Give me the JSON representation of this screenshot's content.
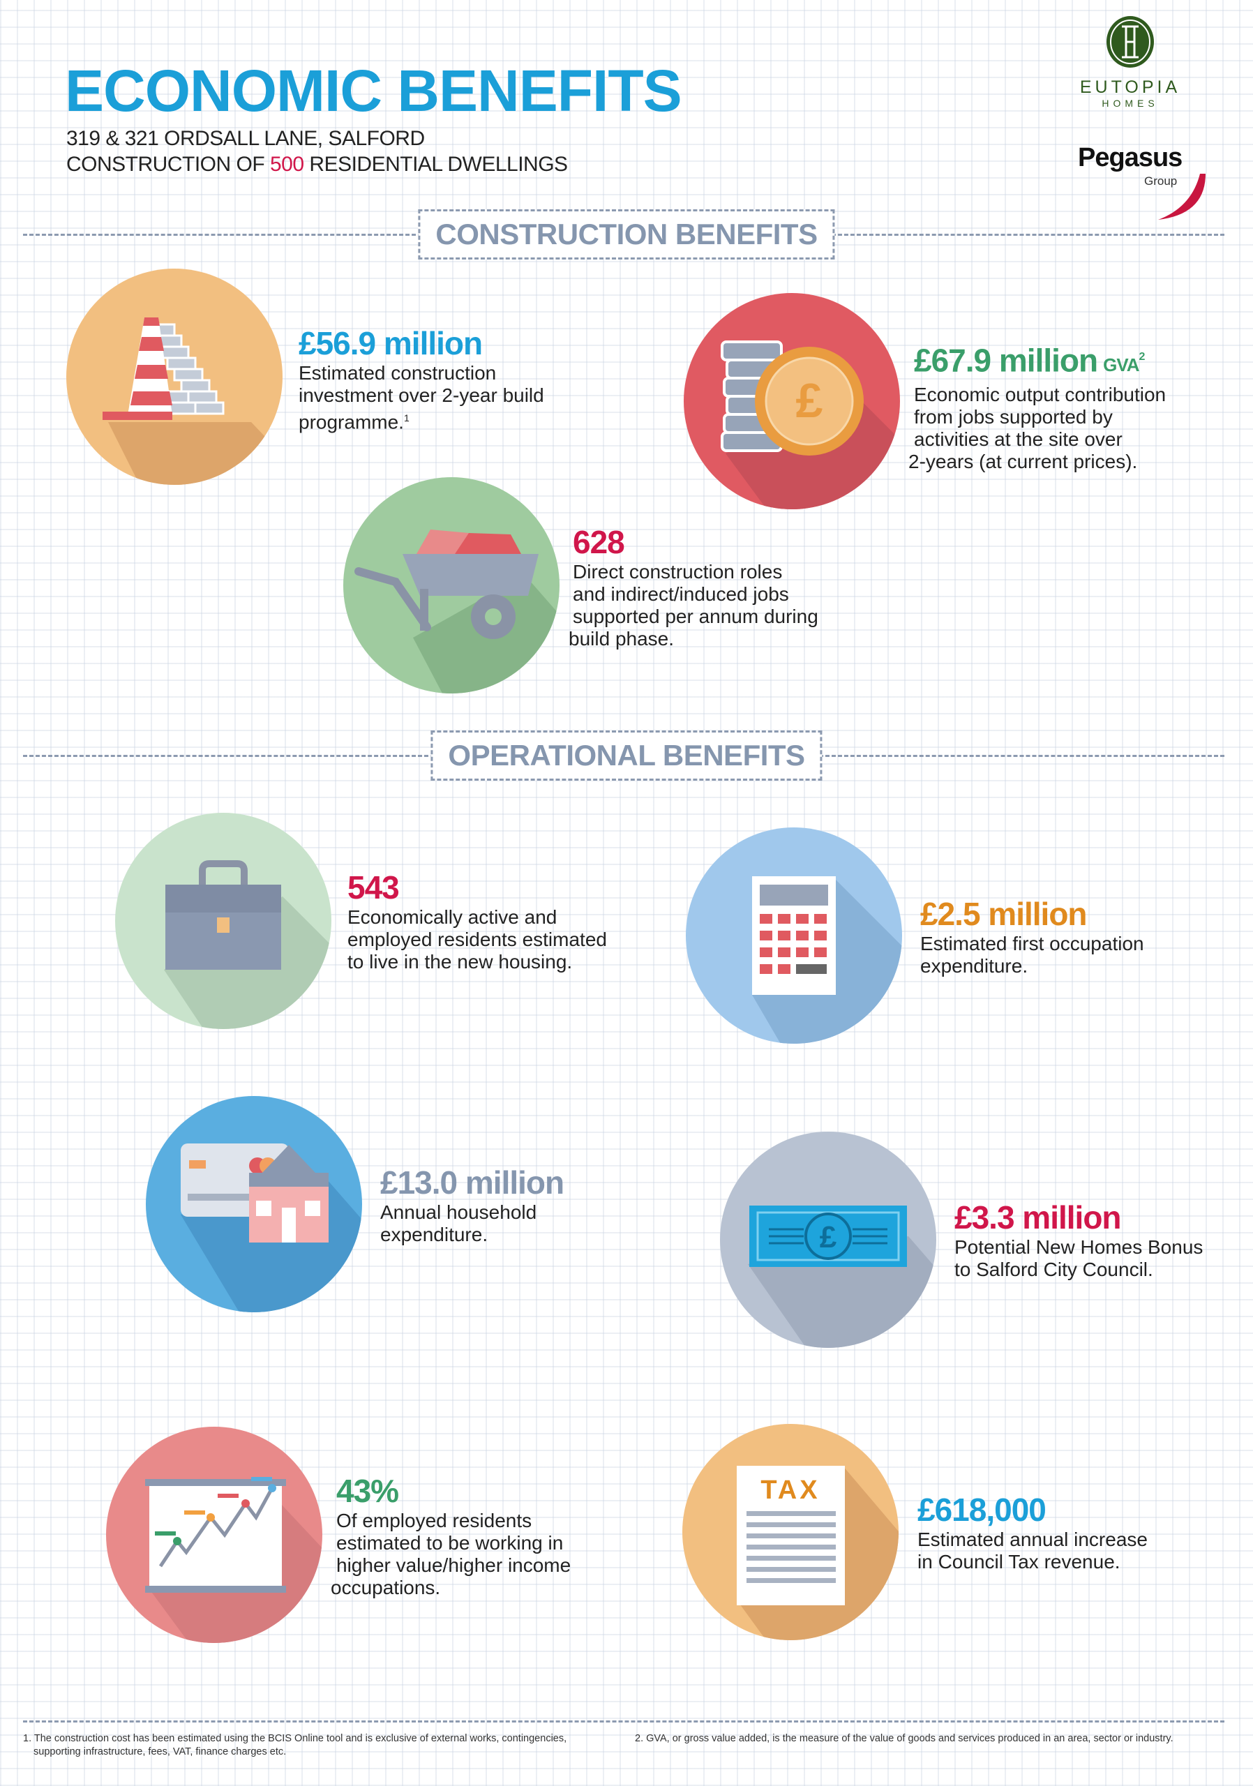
{
  "header": {
    "title": "ECONOMIC BENEFITS",
    "address": "319 & 321 ORDSALL LANE, SALFORD",
    "line2_pre": "CONSTRUCTION OF ",
    "line2_num": "500",
    "line2_post": " RESIDENTIAL DWELLINGS"
  },
  "logos": {
    "eutopia": "EUTOPIA",
    "eutopia_sub": "HOMES",
    "pegasus": "Pegasus",
    "pegasus_sub": "Group"
  },
  "sections": {
    "construction": "CONSTRUCTION BENEFITS",
    "operational": "OPERATIONAL BENEFITS"
  },
  "colors": {
    "blue": "#1b9fd8",
    "green": "#3a9e6a",
    "crimson": "#d0164a",
    "orange": "#e08a1e",
    "slate": "#8596ae"
  },
  "cards": [
    {
      "icon": "traffic-cone-bricks-icon",
      "value": "£56.9 million",
      "desc": [
        "Estimated construction",
        "investment over 2-year build",
        "programme."
      ],
      "footnote_ref": "1"
    },
    {
      "icon": "pound-coins-icon",
      "value": "£67.9 million",
      "suffix": "GVA",
      "suffix_ref": "2",
      "desc": [
        "Economic output contribution",
        "from jobs supported by",
        "activities at the site over",
        "2-years (at current prices)."
      ]
    },
    {
      "icon": "wheelbarrow-icon",
      "value": "628",
      "desc": [
        "Direct construction roles",
        "and indirect/induced jobs",
        "supported per annum during",
        "build phase."
      ]
    },
    {
      "icon": "briefcase-icon",
      "value": "543",
      "desc": [
        "Economically active and",
        "employed residents estimated",
        "to live in the new housing."
      ]
    },
    {
      "icon": "calculator-icon",
      "value": "£2.5 million",
      "desc": [
        "Estimated first occupation",
        "expenditure."
      ]
    },
    {
      "icon": "credit-card-house-icon",
      "value": "£13.0 million",
      "desc": [
        "Annual household",
        "expenditure."
      ]
    },
    {
      "icon": "banknote-icon",
      "value": "£3.3 million",
      "desc": [
        "Potential New Homes Bonus",
        "to Salford City Council."
      ]
    },
    {
      "icon": "growth-chart-icon",
      "value": "43%",
      "desc": [
        "Of employed residents",
        "estimated to be working in",
        "higher value/higher income",
        "occupations."
      ]
    },
    {
      "icon": "tax-document-icon",
      "value": "£618,000",
      "icon_text": "TAX",
      "desc": [
        "Estimated annual increase",
        "in Council Tax revenue."
      ]
    }
  ],
  "footnotes": [
    "1. The construction cost has been estimated using the BCIS Online tool and is exclusive of external works, contingencies,",
    "supporting infrastructure, fees, VAT, finance charges etc.",
    "2. GVA, or gross value added, is the measure of the value of goods and services produced in an area, sector or industry."
  ]
}
